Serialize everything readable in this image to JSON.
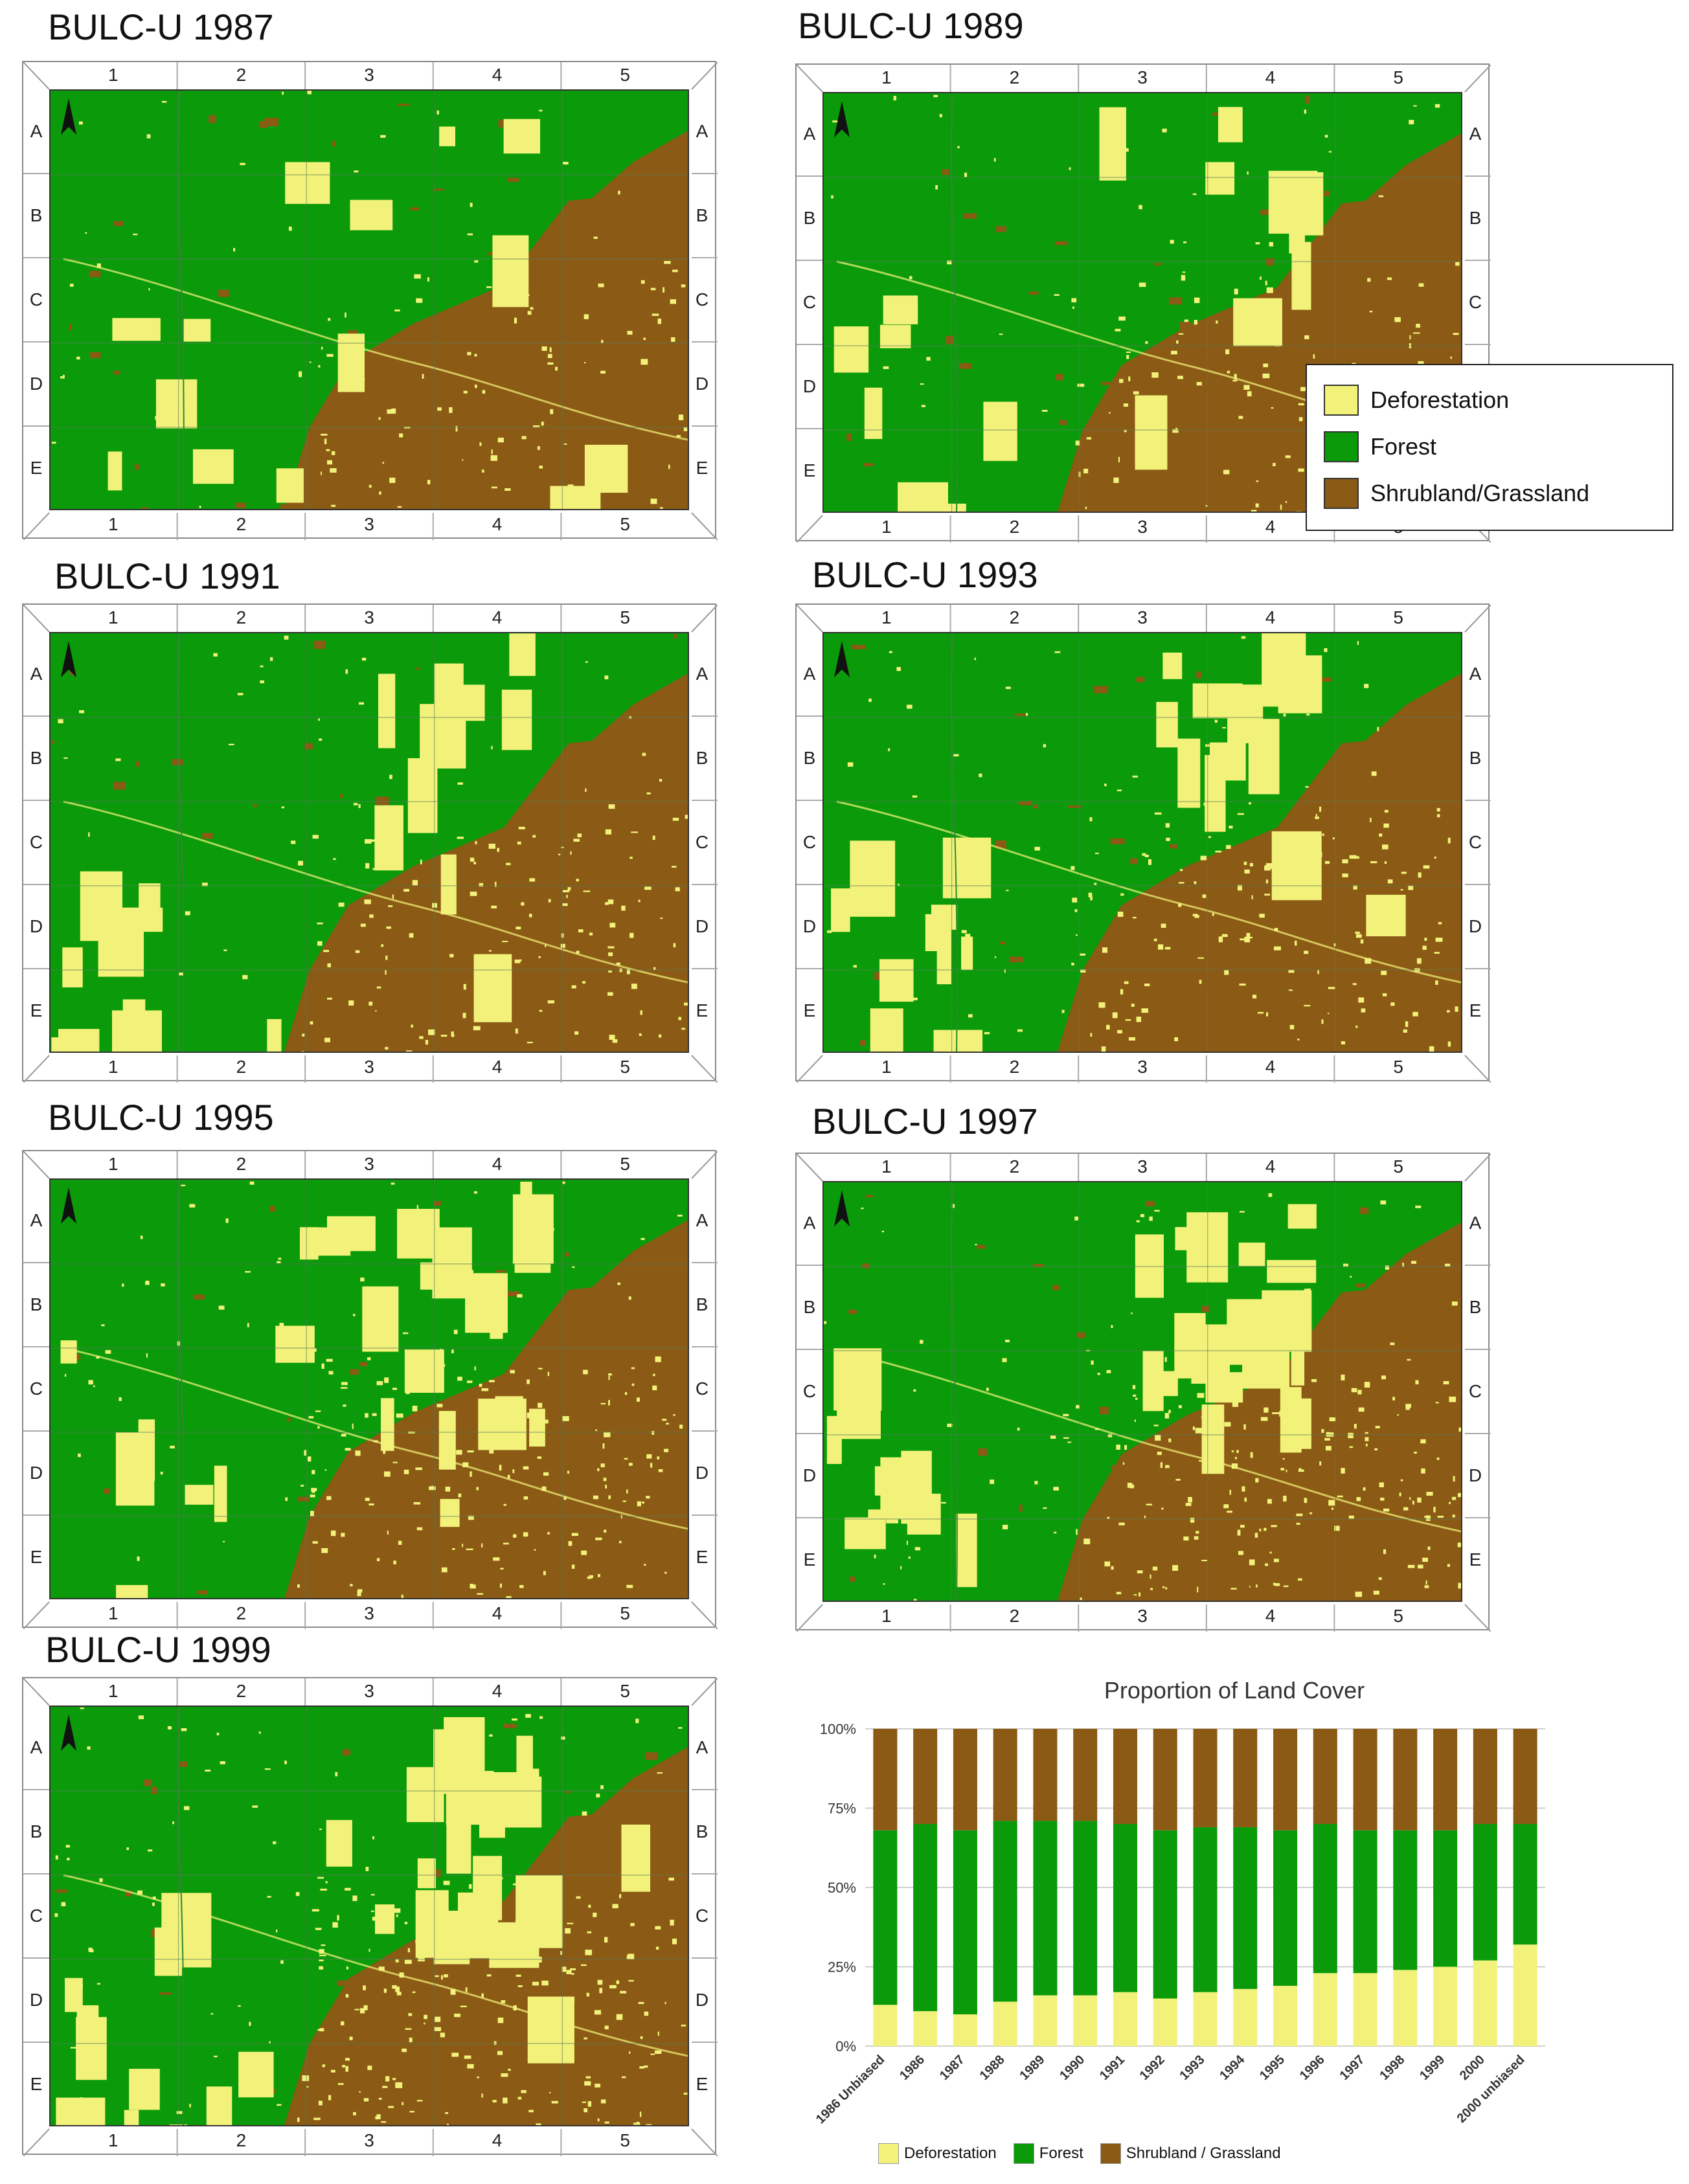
{
  "panels": [
    {
      "id": "p1987",
      "title": "BULC-U 1987"
    },
    {
      "id": "p1989",
      "title": "BULC-U 1989"
    },
    {
      "id": "p1991",
      "title": "BULC-U 1991"
    },
    {
      "id": "p1993",
      "title": "BULC-U 1993"
    },
    {
      "id": "p1995",
      "title": "BULC-U 1995"
    },
    {
      "id": "p1997",
      "title": "BULC-U 1997"
    },
    {
      "id": "p1999",
      "title": "BULC-U 1999"
    }
  ],
  "grid": {
    "columns": [
      "1",
      "2",
      "3",
      "4",
      "5"
    ],
    "rows": [
      "A",
      "B",
      "C",
      "D",
      "E"
    ]
  },
  "legend": {
    "items": [
      {
        "label": "Deforestation",
        "color": "#f2f27a"
      },
      {
        "label": "Forest",
        "color": "#0a9a0a"
      },
      {
        "label": "Shrubland/Grassland",
        "color": "#8b5a14"
      }
    ]
  },
  "colors": {
    "forest": "#0a9a0a",
    "deforestation": "#f2f27a",
    "shrubland": "#8b5a14"
  },
  "icons": {
    "north_arrow": "north-arrow-icon"
  },
  "chart_data": {
    "type": "bar",
    "stacked": true,
    "title": "Proportion of Land Cover",
    "categories": [
      "1986 Unbiased",
      "1986",
      "1987",
      "1988",
      "1989",
      "1990",
      "1991",
      "1992",
      "1993",
      "1994",
      "1995",
      "1996",
      "1997",
      "1998",
      "1999",
      "2000",
      "2000 unbiased"
    ],
    "series": [
      {
        "name": "Deforestation",
        "color": "#f2f27a",
        "values": [
          13,
          11,
          10,
          14,
          16,
          16,
          17,
          15,
          17,
          18,
          19,
          23,
          23,
          24,
          25,
          27,
          32
        ]
      },
      {
        "name": "Forest",
        "color": "#0a9a0a",
        "values": [
          55,
          59,
          58,
          57,
          55,
          55,
          53,
          53,
          52,
          51,
          49,
          47,
          45,
          44,
          43,
          43,
          38
        ]
      },
      {
        "name": "Shrubland / Grassland",
        "color": "#8b5a14",
        "values": [
          32,
          30,
          32,
          29,
          29,
          29,
          30,
          32,
          31,
          31,
          32,
          30,
          32,
          32,
          32,
          30,
          30
        ]
      }
    ],
    "yticks": [
      "0%",
      "25%",
      "50%",
      "75%",
      "100%"
    ],
    "ylim": [
      0,
      100
    ],
    "legend_position": "bottom"
  }
}
